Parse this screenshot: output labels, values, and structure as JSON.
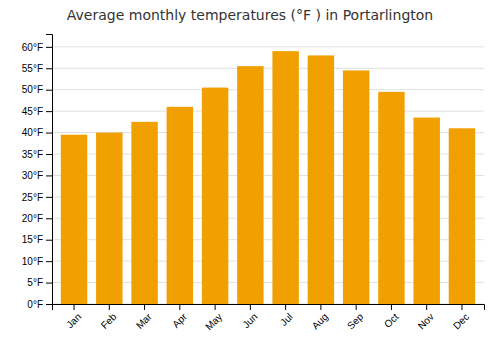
{
  "chart_data": {
    "type": "bar",
    "title": "Average monthly temperatures (°F ) in Portarlington",
    "categories": [
      "Jan",
      "Feb",
      "Mar",
      "Apr",
      "May",
      "Jun",
      "Jul",
      "Aug",
      "Sep",
      "Oct",
      "Nov",
      "Dec"
    ],
    "values": [
      39.5,
      40.0,
      42.5,
      46.0,
      50.5,
      55.5,
      59.0,
      58.0,
      54.5,
      49.5,
      43.5,
      41.0
    ],
    "color": "#F0A000",
    "ylim": [
      0,
      63
    ],
    "yticks": [
      {
        "value": 0,
        "label": "0°F"
      },
      {
        "value": 5,
        "label": "5°F"
      },
      {
        "value": 10,
        "label": "10°F"
      },
      {
        "value": 15,
        "label": "15°F"
      },
      {
        "value": 20,
        "label": "20°F"
      },
      {
        "value": 25,
        "label": "25°F"
      },
      {
        "value": 30,
        "label": "30°F"
      },
      {
        "value": 35,
        "label": "35°F"
      },
      {
        "value": 40,
        "label": "40°F"
      },
      {
        "value": 45,
        "label": "45°F"
      },
      {
        "value": 50,
        "label": "50°F"
      },
      {
        "value": 55,
        "label": "55°F"
      },
      {
        "value": 60,
        "label": "60°F"
      }
    ],
    "grid": true
  }
}
